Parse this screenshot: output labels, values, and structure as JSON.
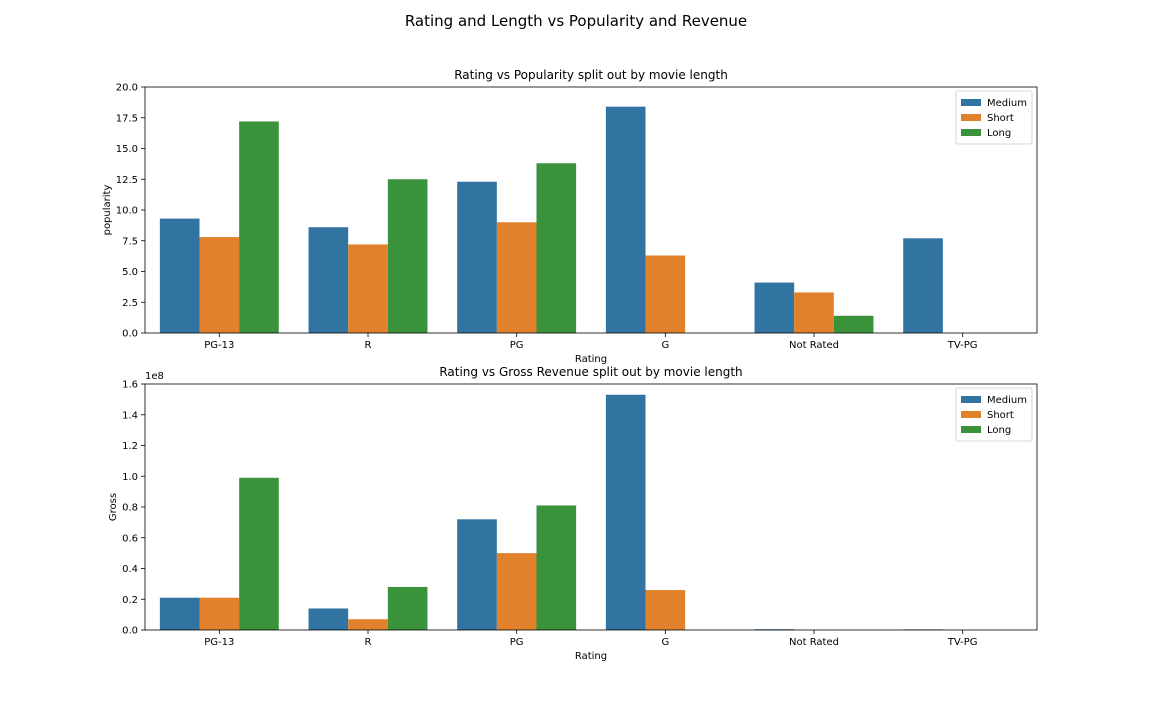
{
  "figure": {
    "suptitle": "Rating and Length vs Popularity and Revenue"
  },
  "colors": {
    "Medium": "#3274a1",
    "Short": "#e1812c",
    "Long": "#3a923a"
  },
  "chart_data": [
    {
      "type": "bar",
      "title": "Rating vs Popularity split out by movie length",
      "xlabel": "Rating",
      "ylabel": "popularity",
      "ylim": [
        0,
        20
      ],
      "yticks": [
        "0.0",
        "2.5",
        "5.0",
        "7.5",
        "10.0",
        "12.5",
        "15.0",
        "17.5",
        "20.0"
      ],
      "offset_label": "",
      "legend_position": "upper right",
      "categories": [
        "PG-13",
        "R",
        "PG",
        "G",
        "Not Rated",
        "TV-PG"
      ],
      "series": [
        {
          "name": "Medium",
          "values": [
            9.3,
            8.6,
            12.3,
            18.4,
            4.1,
            7.7
          ]
        },
        {
          "name": "Short",
          "values": [
            7.8,
            7.2,
            9.0,
            6.3,
            3.3,
            null
          ]
        },
        {
          "name": "Long",
          "values": [
            17.2,
            12.5,
            13.8,
            null,
            1.4,
            null
          ]
        }
      ]
    },
    {
      "type": "bar",
      "title": "Rating vs Gross Revenue split out by movie length",
      "xlabel": "Rating",
      "ylabel": "Gross",
      "ylim": [
        0,
        1.6
      ],
      "yticks": [
        "0.0",
        "0.2",
        "0.4",
        "0.6",
        "0.8",
        "1.0",
        "1.2",
        "1.4",
        "1.6"
      ],
      "offset_label": "1e8",
      "legend_position": "upper right",
      "categories": [
        "PG-13",
        "R",
        "PG",
        "G",
        "Not Rated",
        "TV-PG"
      ],
      "series": [
        {
          "name": "Medium",
          "values": [
            0.21,
            0.14,
            0.72,
            1.53,
            0.005,
            0.004
          ]
        },
        {
          "name": "Short",
          "values": [
            0.21,
            0.07,
            0.5,
            0.26,
            null,
            null
          ]
        },
        {
          "name": "Long",
          "values": [
            0.99,
            0.28,
            0.81,
            null,
            null,
            null
          ]
        }
      ]
    }
  ]
}
